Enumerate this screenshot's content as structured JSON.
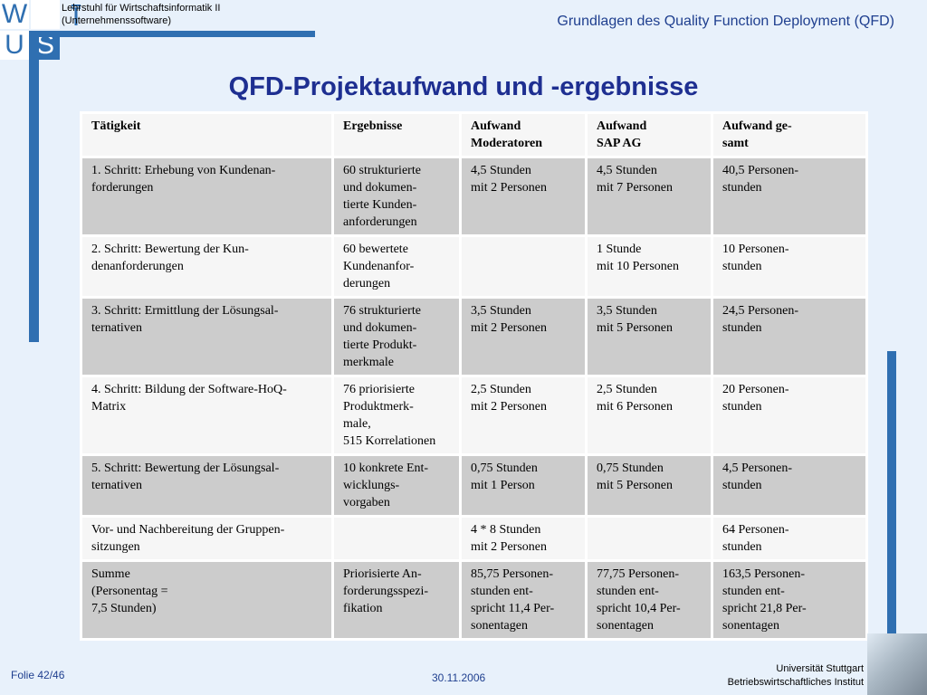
{
  "logo": {
    "letters": [
      "W",
      "",
      "U",
      "S"
    ]
  },
  "header": {
    "chair_line1": "Lehrstuhl für Wirtschaftsinformatik II",
    "chair_line2": "(Unternehmenssoftware)",
    "title": "Grundlagen des Quality Function Deployment (QFD)"
  },
  "slide": {
    "title": "QFD-Projektaufwand und -ergebnisse"
  },
  "table": {
    "headers": [
      [
        "Tätigkeit"
      ],
      [
        "Ergebnisse"
      ],
      [
        "Aufwand",
        "Moderatoren"
      ],
      [
        "Aufwand",
        "SAP AG"
      ],
      [
        "Aufwand ge-",
        "samt"
      ]
    ],
    "rows": [
      [
        [
          "1. Schritt: Erhebung von Kundenan-",
          "forderungen"
        ],
        [
          "60 strukturierte",
          "und dokumen-",
          "tierte Kunden-",
          "anforderungen"
        ],
        [
          "4,5 Stunden",
          "mit 2 Personen"
        ],
        [
          "4,5 Stunden",
          "mit 7 Personen"
        ],
        [
          "40,5 Personen-",
          "stunden"
        ]
      ],
      [
        [
          "2. Schritt: Bewertung der Kun-",
          "denanforderungen"
        ],
        [
          "60 bewertete",
          "Kundenanfor-",
          "derungen"
        ],
        [],
        [
          "1 Stunde",
          "mit 10 Personen"
        ],
        [
          "10 Personen-",
          "stunden"
        ]
      ],
      [
        [
          "3. Schritt: Ermittlung der Lösungsal-",
          "ternativen"
        ],
        [
          "76 strukturierte",
          "und dokumen-",
          "tierte Produkt-",
          "merkmale"
        ],
        [
          "3,5 Stunden",
          "mit 2 Personen"
        ],
        [
          "3,5 Stunden",
          "mit 5 Personen"
        ],
        [
          "24,5 Personen-",
          "stunden"
        ]
      ],
      [
        [
          "4. Schritt: Bildung der Software-HoQ-",
          "Matrix"
        ],
        [
          "76 priorisierte",
          "Produktmerk-",
          "male,",
          "515 Korrelationen"
        ],
        [
          "2,5 Stunden",
          "mit 2 Personen"
        ],
        [
          "2,5 Stunden",
          "mit 6 Personen"
        ],
        [
          "20 Personen-",
          "stunden"
        ]
      ],
      [
        [
          "5. Schritt: Bewertung der Lösungsal-",
          "ternativen"
        ],
        [
          "10 konkrete Ent-",
          "wicklungs-",
          "vorgaben"
        ],
        [
          "0,75 Stunden",
          "mit 1 Person"
        ],
        [
          "0,75 Stunden",
          "mit 5 Personen"
        ],
        [
          "4,5 Personen-",
          "stunden"
        ]
      ],
      [
        [
          "Vor- und Nachbereitung der Gruppen-",
          "sitzungen"
        ],
        [],
        [
          "4 * 8 Stunden",
          "mit 2 Personen"
        ],
        [],
        [
          "64 Personen-",
          "stunden"
        ]
      ],
      [
        [
          "Summe",
          "(Personentag =",
          "7,5 Stunden)"
        ],
        [
          "Priorisierte An-",
          "forderungsspezi-",
          "fikation"
        ],
        [
          "85,75 Personen-",
          "stunden ent-",
          "spricht 11,4 Per-",
          "sonentagen"
        ],
        [
          "77,75 Personen-",
          "stunden ent-",
          "spricht 10,4 Per-",
          "sonentagen"
        ],
        [
          "163,5 Personen-",
          "stunden ent-",
          "spricht 21,8 Per-",
          "sonentagen"
        ]
      ]
    ]
  },
  "footer": {
    "slide_number": "Folie 42/46",
    "date": "30.11.2006",
    "university_line1": "Universität Stuttgart",
    "university_line2": "Betriebswirtschaftliches Institut"
  },
  "icons": [
    "tower-icon",
    "building-photo"
  ],
  "colors": {
    "brand_blue": "#2f6fb1",
    "title_blue": "#1e2f91",
    "row_dark": "#cccccc",
    "row_light": "#f6f6f6"
  }
}
